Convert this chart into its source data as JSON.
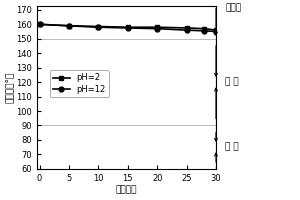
{
  "x_ph2": [
    0,
    5,
    10,
    15,
    20,
    25,
    28,
    30
  ],
  "y_ph2": [
    160,
    159,
    158.5,
    158,
    158,
    157.5,
    157,
    156
  ],
  "x_ph12": [
    0,
    5,
    10,
    15,
    20,
    25,
    28,
    30
  ],
  "y_ph12": [
    160,
    159,
    158,
    157.5,
    157,
    156,
    155.5,
    155
  ],
  "xlim": [
    -0.5,
    30
  ],
  "ylim": [
    60,
    173
  ],
  "xticks": [
    0,
    5,
    10,
    15,
    20,
    25,
    30
  ],
  "yticks": [
    60,
    70,
    80,
    90,
    100,
    110,
    120,
    130,
    140,
    150,
    160,
    170
  ],
  "xlabel": "循环次数",
  "ylabel": "接触角（°）",
  "legend_ph2": "pH=2",
  "legend_ph12": "pH=12",
  "annotation_chaoshushui": "超疏水",
  "annotation_shushui": "疏 水",
  "annotation_qinshui": "亲 水",
  "hline_150": 150,
  "hline_90": 90,
  "line_color": "#000000",
  "bg_color": "#ffffff",
  "grid_color": "#bbbbbb"
}
